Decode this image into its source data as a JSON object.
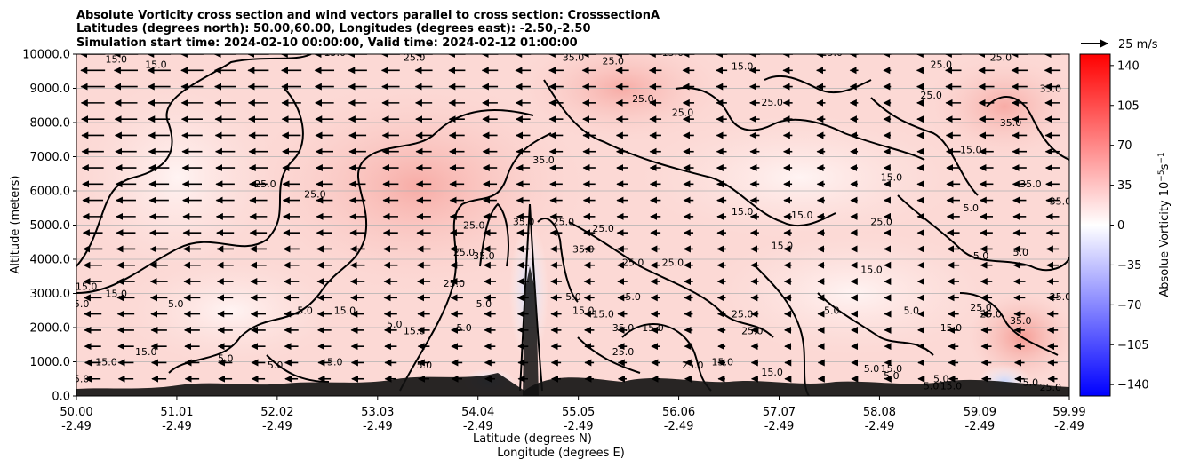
{
  "chart_data": {
    "type": "contour",
    "title_lines": [
      "Absolute Vorticity cross section and wind vectors parallel to cross section: CrosssectionA",
      "Latitudes (degrees north): 50.00,60.00, Longitudes (degrees east): -2.50,-2.50",
      "Simulation start time: 2024-02-10 00:00:00, Valid time: 2024-02-12 01:00:00"
    ],
    "xlabel": "Latitude (degrees N)",
    "xlabel2": "Longitude (degrees E)",
    "ylabel": "Altitude (meters)",
    "xlim": [
      50.0,
      59.99
    ],
    "ylim": [
      0,
      10000
    ],
    "x_ticks": [
      {
        "lat": "50.00",
        "lon": "-2.49",
        "value": 50.0
      },
      {
        "lat": "51.01",
        "lon": "-2.49",
        "value": 51.01
      },
      {
        "lat": "52.02",
        "lon": "-2.49",
        "value": 52.02
      },
      {
        "lat": "53.03",
        "lon": "-2.49",
        "value": 53.03
      },
      {
        "lat": "54.04",
        "lon": "-2.49",
        "value": 54.04
      },
      {
        "lat": "55.05",
        "lon": "-2.49",
        "value": 55.05
      },
      {
        "lat": "56.06",
        "lon": "-2.49",
        "value": 56.06
      },
      {
        "lat": "57.07",
        "lon": "-2.49",
        "value": 57.07
      },
      {
        "lat": "58.08",
        "lon": "-2.49",
        "value": 58.08
      },
      {
        "lat": "59.09",
        "lon": "-2.49",
        "value": 59.09
      },
      {
        "lat": "59.99",
        "lon": "-2.49",
        "value": 59.99
      }
    ],
    "y_ticks": [
      "0.0",
      "1000.0",
      "2000.0",
      "3000.0",
      "4000.0",
      "5000.0",
      "6000.0",
      "7000.0",
      "8000.0",
      "9000.0",
      "10000.0"
    ],
    "y_tick_values": [
      0,
      1000,
      2000,
      3000,
      4000,
      5000,
      6000,
      7000,
      8000,
      9000,
      10000
    ],
    "grid": "horizontal",
    "colorbar": {
      "label": "Absolue Vorticity 10",
      "label_exponent": "−5",
      "label_suffix": "s",
      "label_suffix_exponent": "−1",
      "ticks": [
        "140",
        "105",
        "70",
        "35",
        "0",
        "−35",
        "−70",
        "−105",
        "−140"
      ],
      "tick_values": [
        140,
        105,
        70,
        35,
        0,
        -35,
        -70,
        -105,
        -140
      ],
      "range": [
        -150,
        150
      ],
      "colormap": "bwr",
      "colors": {
        "min": "#0000ff",
        "mid": "#ffffff",
        "max": "#ff0000"
      }
    },
    "quiver_key": {
      "label": "25 m/s",
      "value": 25
    },
    "wind_vector_direction": "mostly negative along cross section (toward south)",
    "contour_line_labels": [
      "5.0",
      "15.0",
      "25.0",
      "35.0"
    ],
    "contour_label_marks": [
      {
        "text": "15.0",
        "x": 50.4,
        "y": 9750
      },
      {
        "text": "15.0",
        "x": 50.8,
        "y": 9600
      },
      {
        "text": "15.0",
        "x": 52.6,
        "y": 9950
      },
      {
        "text": "25.0",
        "x": 53.4,
        "y": 9800
      },
      {
        "text": "35.0",
        "x": 55.0,
        "y": 9800
      },
      {
        "text": "25.0",
        "x": 55.4,
        "y": 9700
      },
      {
        "text": "15.0",
        "x": 56.0,
        "y": 9950
      },
      {
        "text": "15.0",
        "x": 56.7,
        "y": 9550
      },
      {
        "text": "25.0",
        "x": 57.6,
        "y": 9950
      },
      {
        "text": "25.0",
        "x": 58.7,
        "y": 9600
      },
      {
        "text": "25.0",
        "x": 59.3,
        "y": 9800
      },
      {
        "text": "35.0",
        "x": 59.8,
        "y": 8900
      },
      {
        "text": "25.0",
        "x": 55.7,
        "y": 8600
      },
      {
        "text": "25.0",
        "x": 56.1,
        "y": 8200
      },
      {
        "text": "25.0",
        "x": 57.0,
        "y": 8500
      },
      {
        "text": "25.0",
        "x": 58.6,
        "y": 8700
      },
      {
        "text": "35.0",
        "x": 59.4,
        "y": 7900
      },
      {
        "text": "15.0",
        "x": 59.0,
        "y": 7100
      },
      {
        "text": "35.0",
        "x": 54.7,
        "y": 6800
      },
      {
        "text": "25.0",
        "x": 51.9,
        "y": 6100
      },
      {
        "text": "25.0",
        "x": 52.4,
        "y": 5800
      },
      {
        "text": "15.0",
        "x": 58.2,
        "y": 6300
      },
      {
        "text": "35.0",
        "x": 59.6,
        "y": 6100
      },
      {
        "text": "15.0",
        "x": 56.7,
        "y": 5300
      },
      {
        "text": "15.0",
        "x": 57.3,
        "y": 5200
      },
      {
        "text": "25.0",
        "x": 58.1,
        "y": 5000
      },
      {
        "text": "5.0",
        "x": 59.0,
        "y": 5400
      },
      {
        "text": "35.0",
        "x": 59.9,
        "y": 5600
      },
      {
        "text": "25.0",
        "x": 54.0,
        "y": 4900
      },
      {
        "text": "35.0",
        "x": 54.5,
        "y": 5000
      },
      {
        "text": "25.0",
        "x": 54.9,
        "y": 5000
      },
      {
        "text": "25.0",
        "x": 55.3,
        "y": 4800
      },
      {
        "text": "25.0",
        "x": 53.9,
        "y": 4100
      },
      {
        "text": "35.0",
        "x": 54.1,
        "y": 4000
      },
      {
        "text": "35.0",
        "x": 55.1,
        "y": 4200
      },
      {
        "text": "25.0",
        "x": 55.6,
        "y": 3800
      },
      {
        "text": "25.0",
        "x": 56.0,
        "y": 3800
      },
      {
        "text": "15.0",
        "x": 57.1,
        "y": 4300
      },
      {
        "text": "5.0",
        "x": 59.1,
        "y": 4000
      },
      {
        "text": "5.0",
        "x": 59.5,
        "y": 4100
      },
      {
        "text": "15.0",
        "x": 58.0,
        "y": 3600
      },
      {
        "text": "15.0",
        "x": 50.1,
        "y": 3100
      },
      {
        "text": "15.0",
        "x": 50.4,
        "y": 2900
      },
      {
        "text": "5.0",
        "x": 50.05,
        "y": 2600
      },
      {
        "text": "25.0",
        "x": 53.8,
        "y": 3200
      },
      {
        "text": "5.0",
        "x": 54.1,
        "y": 2600
      },
      {
        "text": "5.0",
        "x": 55.0,
        "y": 2800
      },
      {
        "text": "15.0",
        "x": 55.1,
        "y": 2400
      },
      {
        "text": "15.0",
        "x": 55.3,
        "y": 2300
      },
      {
        "text": "5.0",
        "x": 55.6,
        "y": 2800
      },
      {
        "text": "25.0",
        "x": 59.1,
        "y": 2500
      },
      {
        "text": "25.0",
        "x": 59.9,
        "y": 2800
      },
      {
        "text": "5.0",
        "x": 51.0,
        "y": 2600
      },
      {
        "text": "5.0",
        "x": 52.3,
        "y": 2400
      },
      {
        "text": "15.0",
        "x": 52.7,
        "y": 2400
      },
      {
        "text": "5.0",
        "x": 53.2,
        "y": 2000
      },
      {
        "text": "15.0",
        "x": 53.4,
        "y": 1800
      },
      {
        "text": "5.0",
        "x": 53.9,
        "y": 1900
      },
      {
        "text": "35.0",
        "x": 55.5,
        "y": 1900
      },
      {
        "text": "15.0",
        "x": 55.8,
        "y": 1900
      },
      {
        "text": "25.0",
        "x": 56.7,
        "y": 2300
      },
      {
        "text": "25.0",
        "x": 56.8,
        "y": 1800
      },
      {
        "text": "5.0",
        "x": 57.6,
        "y": 2400
      },
      {
        "text": "5.0",
        "x": 58.4,
        "y": 2400
      },
      {
        "text": "15.0",
        "x": 58.8,
        "y": 1900
      },
      {
        "text": "25.0",
        "x": 59.2,
        "y": 2300
      },
      {
        "text": "35.0",
        "x": 59.5,
        "y": 2100
      },
      {
        "text": "15.0",
        "x": 50.7,
        "y": 1200
      },
      {
        "text": "15.0",
        "x": 50.3,
        "y": 900
      },
      {
        "text": "5.0",
        "x": 51.5,
        "y": 1000
      },
      {
        "text": "5.0",
        "x": 52.0,
        "y": 800
      },
      {
        "text": "5.0",
        "x": 52.6,
        "y": 900
      },
      {
        "text": "5.0",
        "x": 53.5,
        "y": 800
      },
      {
        "text": "25.0",
        "x": 55.5,
        "y": 1200
      },
      {
        "text": "25.0",
        "x": 56.2,
        "y": 800
      },
      {
        "text": "15.0",
        "x": 56.5,
        "y": 900
      },
      {
        "text": "15.0",
        "x": 57.0,
        "y": 600
      },
      {
        "text": "5.0",
        "x": 58.0,
        "y": 700
      },
      {
        "text": "15.0",
        "x": 58.2,
        "y": 700
      },
      {
        "text": "5.0",
        "x": 58.2,
        "y": 500
      },
      {
        "text": "5.0",
        "x": 58.7,
        "y": 400
      },
      {
        "text": "5.0",
        "x": 58.6,
        "y": 200
      },
      {
        "text": "15.0",
        "x": 58.8,
        "y": 200
      },
      {
        "text": "5.0",
        "x": 59.6,
        "y": 300
      },
      {
        "text": "25.0",
        "x": 59.8,
        "y": 150
      },
      {
        "text": "5.0",
        "x": 50.05,
        "y": 400
      }
    ]
  }
}
